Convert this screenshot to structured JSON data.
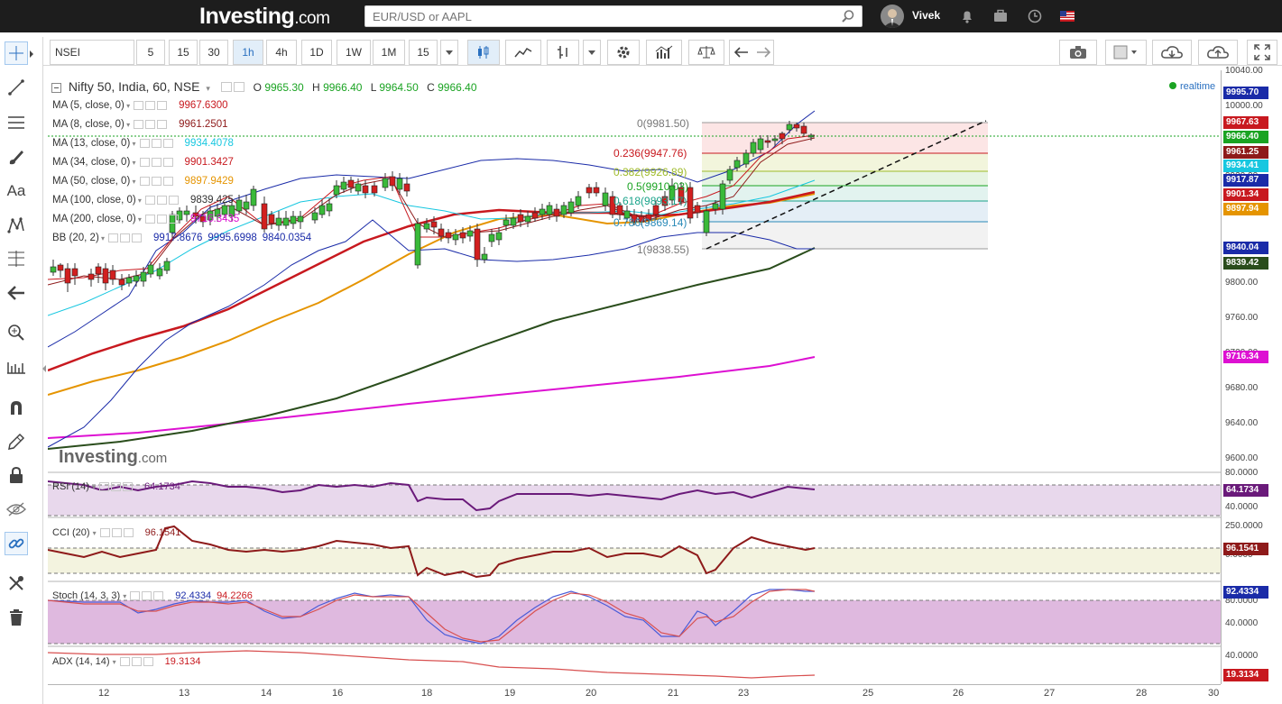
{
  "header": {
    "logo": "Investing",
    "logo_suffix": ".com",
    "search_placeholder": "EUR/USD or AAPL",
    "username": "Vivek"
  },
  "toolbar": {
    "symbol": "NSEI",
    "intervals": [
      "5",
      "15",
      "30",
      "1h",
      "4h",
      "1D",
      "1W",
      "1M",
      "15"
    ],
    "active_interval": "1h"
  },
  "legend": {
    "title": "Nifty 50, India, 60, NSE",
    "open_label": "O",
    "open": "9965.30",
    "high_label": "H",
    "high": "9966.40",
    "low_label": "L",
    "low": "9964.50",
    "close_label": "C",
    "close": "9966.40",
    "realtime": "realtime",
    "studies": [
      {
        "name": "MA (5, close, 0)",
        "value": "9967.6300",
        "color": "#c8191f"
      },
      {
        "name": "MA (8, close, 0)",
        "value": "9961.2501",
        "color": "#8e1a1a"
      },
      {
        "name": "MA (13, close, 0)",
        "value": "9934.4078",
        "color": "#17c7e0"
      },
      {
        "name": "MA (34, close, 0)",
        "value": "9901.3427",
        "color": "#c8191f"
      },
      {
        "name": "MA (50, close, 0)",
        "value": "9897.9429",
        "color": "#e59400"
      },
      {
        "name": "MA (100, close, 0)",
        "value": "9839.425",
        "color": "#333333"
      },
      {
        "name": "MA (200, close, 0)",
        "value": "9716.3435",
        "color": "#dd10d2"
      }
    ],
    "bb": {
      "name": "BB (20, 2)",
      "v1": "9917.8676",
      "v2": "9995.6998",
      "v3": "9840.0354",
      "color": "#1a2ba8"
    }
  },
  "fib": [
    {
      "label": "0(9981.50)",
      "color": "#777777"
    },
    {
      "label": "0.236(9947.76)",
      "color": "#c8191f"
    },
    {
      "label": "0.382(9926.89)",
      "color": "#9fba2a"
    },
    {
      "label": "0.5(9910.03)",
      "color": "#1aa322"
    },
    {
      "label": "0.618(9893.17)",
      "color": "#1aa38a"
    },
    {
      "label": "0.786(9869.14)",
      "color": "#2a8ab8"
    },
    {
      "label": "1(9838.55)",
      "color": "#777777"
    }
  ],
  "price_axis": {
    "ticks": [
      "10040.00",
      "10000.00",
      "9960.00",
      "9920.00",
      "9880.00",
      "9840.00",
      "9800.00",
      "9760.00",
      "9720.00",
      "9680.00",
      "9640.00",
      "9600.00"
    ],
    "labels": [
      {
        "text": "9995.70",
        "color": "#1a2ba8"
      },
      {
        "text": "9967.63",
        "color": "#c8191f"
      },
      {
        "text": "9966.40",
        "color": "#1aa322"
      },
      {
        "text": "9961.25",
        "color": "#8e1a1a"
      },
      {
        "text": "9934.41",
        "color": "#17c7e0"
      },
      {
        "text": "9917.87",
        "color": "#1a2ba8"
      },
      {
        "text": "9901.34",
        "color": "#c8191f"
      },
      {
        "text": "9897.94",
        "color": "#e59400"
      },
      {
        "text": "9840.04",
        "color": "#1a2ba8"
      },
      {
        "text": "9839.42",
        "color": "#2a4d1c"
      },
      {
        "text": "9716.34",
        "color": "#dd10d2"
      }
    ]
  },
  "rsi": {
    "name": "RSI (14)",
    "value": "64.1734",
    "ticks": [
      "80.0000",
      "40.0000"
    ],
    "label_color": "#6a1a7a"
  },
  "cci": {
    "name": "CCI (20)",
    "value": "96.1541",
    "ticks": [
      "250.0000",
      "0.0000"
    ],
    "label_color": "#8e1a1a"
  },
  "stoch": {
    "name": "Stoch (14, 3, 3)",
    "v1": "92.4334",
    "v2": "94.2266",
    "ticks": [
      "80.0000",
      "40.0000"
    ],
    "label_color": "#1a2ba8"
  },
  "adx": {
    "name": "ADX (14, 14)",
    "value": "19.3134",
    "ticks": [
      "40.0000"
    ],
    "label_color": "#c8191f"
  },
  "time_axis": [
    "12",
    "13",
    "14",
    "16",
    "18",
    "19",
    "20",
    "21",
    "23",
    "25",
    "26",
    "27",
    "28",
    "30"
  ],
  "watermark": "Investing",
  "watermark_suffix": ".com"
}
